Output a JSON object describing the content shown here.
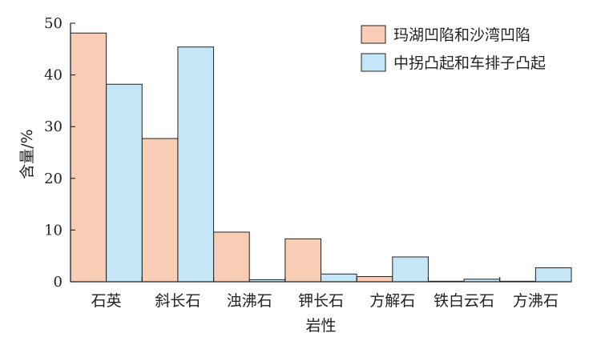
{
  "chart_data": {
    "type": "bar",
    "categories": [
      "石英",
      "斜长石",
      "浊沸石",
      "钾长石",
      "方解石",
      "铁白云石",
      "方沸石"
    ],
    "series": [
      {
        "name": "玛湖凹陷和沙湾凹陷",
        "color": "#f9cdb5",
        "values": [
          48.1,
          27.7,
          9.6,
          8.3,
          1.0,
          0.1,
          0.1
        ]
      },
      {
        "name": "中拐凸起和车排子凸起",
        "color": "#c4e6f7",
        "values": [
          38.2,
          45.4,
          0.4,
          1.5,
          4.8,
          0.5,
          2.7
        ]
      }
    ],
    "xlabel": "岩性",
    "ylabel": "含量/%",
    "ylim": [
      0,
      50
    ],
    "yticks": [
      0,
      10,
      20,
      30,
      40,
      50
    ],
    "legend_position": "top-right",
    "grid": false
  }
}
